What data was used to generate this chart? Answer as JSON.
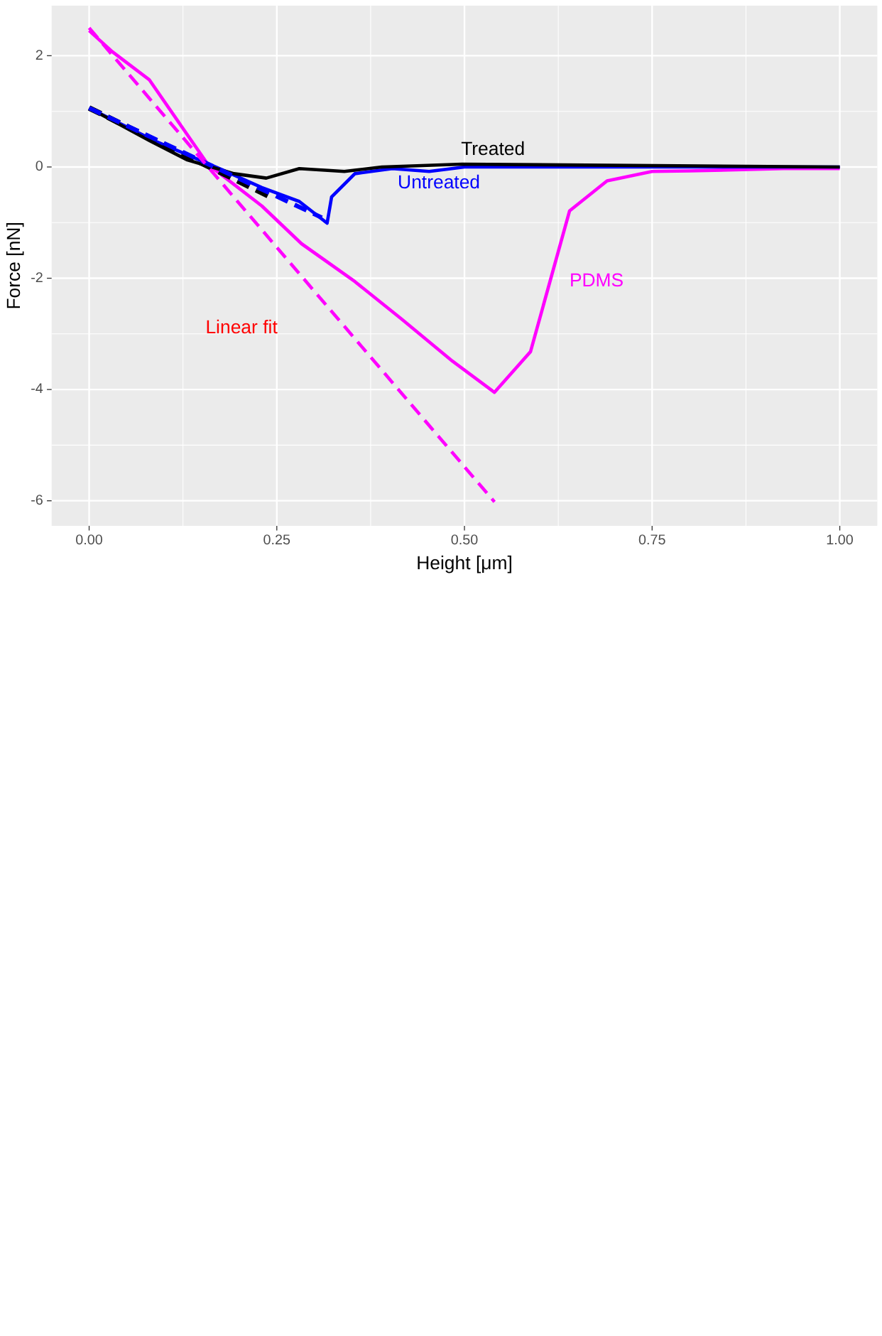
{
  "chart_data": {
    "type": "line",
    "xlabel": "Height [μm]",
    "ylabel": "Force [nN]",
    "xlim": [
      -0.05,
      1.05
    ],
    "xticks": [
      {
        "value": 0,
        "label": "0.00"
      },
      {
        "value": 0.25,
        "label": "0.25"
      },
      {
        "value": 0.5,
        "label": "0.50"
      },
      {
        "value": 0.75,
        "label": "0.75"
      },
      {
        "value": 1,
        "label": "1.00"
      }
    ],
    "ylim": [
      -6.45,
      2.9
    ],
    "yticks": [
      2,
      0,
      -2,
      -4,
      -6
    ],
    "grid": true,
    "line_style": "solid",
    "series": [
      {
        "name": "PDMS",
        "color": "#ff00ff",
        "x": [
          0,
          0.031,
          0.08,
          0.158,
          0.23,
          0.283,
          0.354,
          0.416,
          0.484,
          0.54,
          0.588,
          0.64,
          0.69,
          0.75,
          0.8,
          0.925,
          1.0
        ],
        "values": [
          2.45,
          2.07,
          1.57,
          0.05,
          -0.7,
          -1.38,
          -2.06,
          -2.73,
          -3.49,
          -4.05,
          -3.32,
          -0.79,
          -0.25,
          -0.08,
          -0.07,
          -0.03,
          -0.03
        ]
      },
      {
        "name": "Untreated",
        "color": "#0000ff",
        "x": [
          0,
          0.087,
          0.174,
          0.23,
          0.28,
          0.317,
          0.323,
          0.354,
          0.404,
          0.453,
          0.5,
          1.0
        ],
        "values": [
          1.06,
          0.47,
          -0.03,
          -0.37,
          -0.62,
          -1.01,
          -0.54,
          -0.12,
          -0.03,
          -0.08,
          0,
          0
        ]
      },
      {
        "name": "Treated",
        "color": "#000000",
        "x": [
          0,
          0.081,
          0.13,
          0.193,
          0.236,
          0.28,
          0.34,
          0.39,
          0.497,
          1.0
        ],
        "values": [
          1.06,
          0.47,
          0.13,
          -0.12,
          -0.2,
          -0.03,
          -0.08,
          0,
          0.05,
          0
        ]
      },
      {
        "color": "#ff00ff",
        "line_style": "dashed",
        "x": [
          0,
          0.54
        ],
        "values": [
          2.5,
          -6.02
        ]
      },
      {
        "color": "#0000ff",
        "line_style": "dashed",
        "x": [
          0,
          0.31
        ],
        "values": [
          1.06,
          -0.91
        ]
      },
      {
        "color": "#000000",
        "line_style": "dashed",
        "x": [
          0,
          0.242
        ],
        "values": [
          1.06,
          -0.54
        ]
      }
    ],
    "annotations": [
      "Linear fit"
    ]
  }
}
